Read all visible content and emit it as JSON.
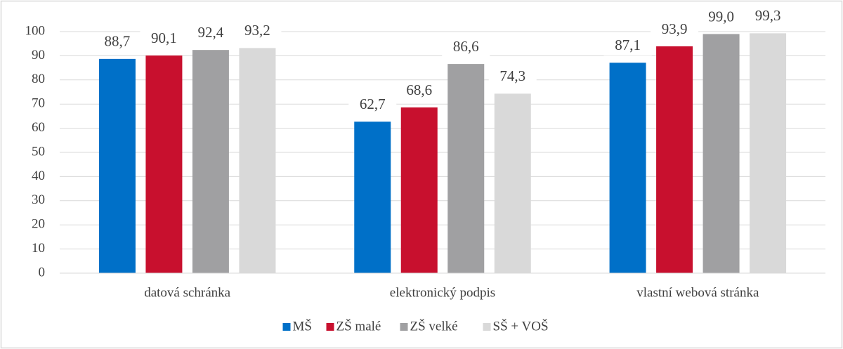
{
  "chart_data": {
    "type": "bar",
    "categories": [
      "datová schránka",
      "elektronický podpis",
      "vlastní webová stránka"
    ],
    "series": [
      {
        "name": "MŠ",
        "color": "#0070c8",
        "values": [
          88.7,
          62.7,
          87.1
        ],
        "value_labels": [
          "88,7",
          "62,7",
          "87,1"
        ]
      },
      {
        "name": "ZŠ malé",
        "color": "#c8102e",
        "values": [
          90.1,
          68.6,
          93.9
        ],
        "value_labels": [
          "90,1",
          "68,6",
          "93,9"
        ]
      },
      {
        "name": "ZŠ velké",
        "color": "#a0a0a2",
        "values": [
          92.4,
          86.6,
          99.0
        ],
        "value_labels": [
          "92,4",
          "86,6",
          "99,0"
        ]
      },
      {
        "name": "SŠ + VOŠ",
        "color": "#d9d9d9",
        "values": [
          93.2,
          74.3,
          99.3
        ],
        "value_labels": [
          "93,2",
          "74,3",
          "99,3"
        ]
      }
    ],
    "ylim": [
      0,
      100
    ],
    "yticks": [
      0,
      10,
      20,
      30,
      40,
      50,
      60,
      70,
      80,
      90,
      100
    ],
    "grid": true,
    "legend": "bottom"
  }
}
